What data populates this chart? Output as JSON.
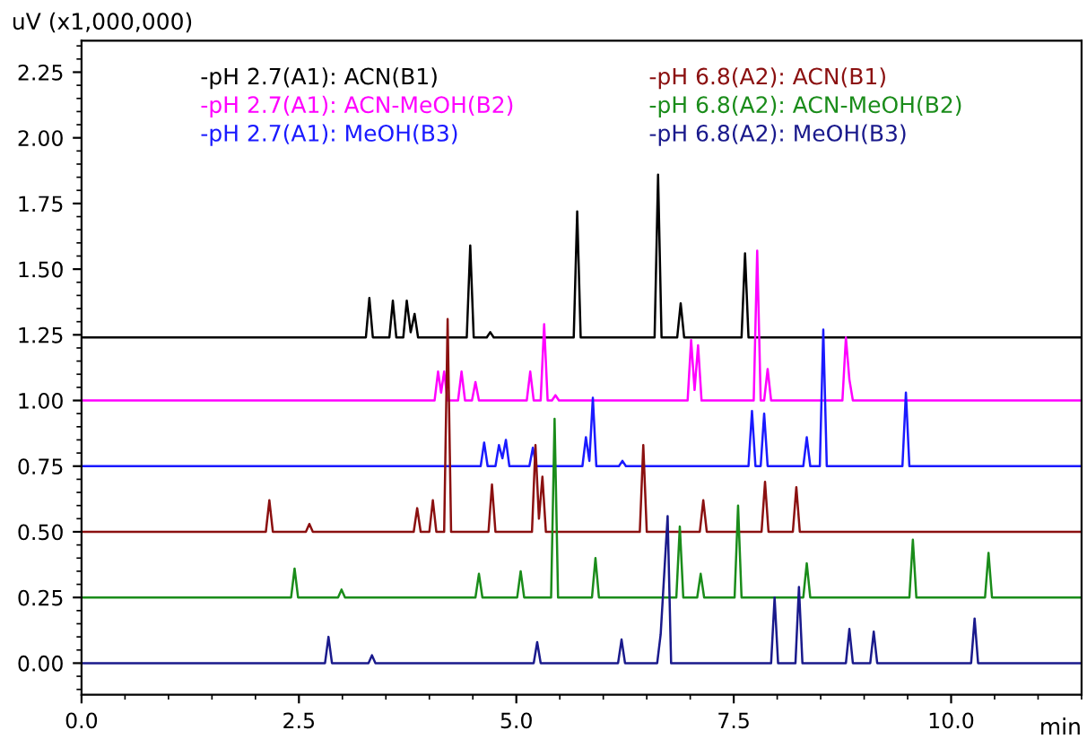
{
  "chart_data": {
    "type": "line",
    "ylabel": "uV (x1,000,000)",
    "xlabel": "min",
    "xlim": [
      0,
      11.5
    ],
    "ylim": [
      -0.12,
      2.37
    ],
    "xticks": [
      {
        "value": 0,
        "label": "0.0"
      },
      2.5,
      {
        "value": 5,
        "label": "5.0"
      },
      7.5,
      {
        "value": 10,
        "label": "10.0"
      }
    ],
    "yticks": [
      {
        "value": 0,
        "label": "0.00"
      },
      0.25,
      {
        "value": 0.5,
        "label": "0.50"
      },
      0.75,
      {
        "value": 1,
        "label": "1.00"
      },
      1.25,
      {
        "value": 1.5,
        "label": "1.50"
      },
      1.75,
      {
        "value": 2,
        "label": "2.00"
      },
      2.25
    ],
    "grid": false,
    "legend": "top",
    "marker": "none",
    "line_style": "solid",
    "series": [
      {
        "name": "-pH 2.7(A1): ACN(B1)",
        "color": "#000000",
        "x": [
          0,
          3.27,
          3.31,
          3.35,
          3.54,
          3.58,
          3.62,
          3.7,
          3.74,
          3.785,
          3.83,
          3.87,
          4.43,
          4.47,
          4.51,
          4.66,
          4.7,
          4.74,
          5.66,
          5.7,
          5.74,
          6.59,
          6.63,
          6.67,
          6.85,
          6.89,
          6.93,
          7.59,
          7.63,
          7.67,
          11.5
        ],
        "values": [
          1.24,
          1.24,
          1.39,
          1.24,
          1.24,
          1.38,
          1.24,
          1.24,
          1.38,
          1.26,
          1.33,
          1.24,
          1.24,
          1.59,
          1.24,
          1.24,
          1.26,
          1.24,
          1.24,
          1.72,
          1.24,
          1.24,
          1.86,
          1.24,
          1.24,
          1.37,
          1.24,
          1.24,
          1.56,
          1.24,
          1.24
        ]
      },
      {
        "name": "-pH 2.7(A1): ACN-MeOH(B2)",
        "color": "#ff00ff",
        "x": [
          0,
          4.06,
          4.1,
          4.135,
          4.17,
          4.21,
          4.33,
          4.37,
          4.41,
          4.49,
          4.53,
          4.57,
          5.12,
          5.16,
          5.2,
          5.28,
          5.32,
          5.36,
          5.41,
          5.45,
          5.49,
          6.97,
          7.01,
          7.05,
          7.09,
          7.13,
          7.73,
          7.77,
          7.81,
          7.85,
          7.89,
          7.93,
          8.75,
          8.79,
          8.83,
          8.87,
          11.5
        ],
        "values": [
          1.0,
          1.0,
          1.11,
          1.03,
          1.11,
          1.0,
          1.0,
          1.11,
          1.0,
          1.0,
          1.07,
          1.0,
          1.0,
          1.11,
          1.0,
          1.0,
          1.29,
          1.0,
          1.0,
          1.02,
          1.0,
          1.0,
          1.23,
          1.04,
          1.21,
          1.0,
          1.0,
          1.57,
          1.0,
          1.0,
          1.12,
          1.0,
          1.0,
          1.24,
          1.08,
          1.0,
          1.0
        ]
      },
      {
        "name": "-pH 2.7(A1): MeOH(B3)",
        "color": "#1a1aff",
        "x": [
          0,
          4.59,
          4.63,
          4.67,
          4.76,
          4.8,
          4.84,
          4.88,
          4.92,
          5.15,
          5.19,
          5.23,
          5.76,
          5.8,
          5.84,
          5.88,
          5.92,
          6.18,
          6.22,
          6.26,
          7.67,
          7.71,
          7.75,
          7.81,
          7.85,
          7.89,
          8.3,
          8.34,
          8.38,
          8.49,
          8.53,
          8.57,
          9.44,
          9.48,
          9.52,
          11.5
        ],
        "values": [
          0.75,
          0.75,
          0.84,
          0.75,
          0.75,
          0.83,
          0.78,
          0.85,
          0.75,
          0.75,
          0.82,
          0.75,
          0.75,
          0.86,
          0.77,
          1.01,
          0.75,
          0.75,
          0.77,
          0.75,
          0.75,
          0.96,
          0.75,
          0.75,
          0.95,
          0.75,
          0.75,
          0.86,
          0.75,
          0.75,
          1.27,
          0.75,
          0.75,
          1.03,
          0.75,
          0.75
        ]
      },
      {
        "name": "-pH 6.8(A2): ACN(B1)",
        "color": "#8b1010",
        "x": [
          0,
          2.12,
          2.16,
          2.2,
          2.58,
          2.62,
          2.66,
          3.82,
          3.86,
          3.9,
          4.0,
          4.04,
          4.08,
          4.17,
          4.21,
          4.25,
          4.68,
          4.72,
          4.76,
          5.18,
          5.22,
          5.26,
          5.3,
          5.34,
          6.42,
          6.46,
          6.5,
          7.11,
          7.15,
          7.19,
          7.82,
          7.86,
          7.9,
          8.18,
          8.22,
          8.26,
          11.5
        ],
        "values": [
          0.5,
          0.5,
          0.62,
          0.5,
          0.5,
          0.53,
          0.5,
          0.5,
          0.59,
          0.5,
          0.5,
          0.62,
          0.5,
          0.5,
          1.31,
          0.5,
          0.5,
          0.68,
          0.5,
          0.5,
          0.83,
          0.55,
          0.71,
          0.5,
          0.5,
          0.83,
          0.5,
          0.5,
          0.62,
          0.5,
          0.5,
          0.69,
          0.5,
          0.5,
          0.67,
          0.5,
          0.5
        ]
      },
      {
        "name": "-pH 6.8(A2): ACN-MeOH(B2)",
        "color": "#1a8c1a",
        "x": [
          0,
          2.41,
          2.45,
          2.49,
          2.95,
          2.99,
          3.03,
          4.53,
          4.57,
          4.61,
          5.01,
          5.05,
          5.09,
          5.4,
          5.44,
          5.48,
          5.87,
          5.91,
          5.95,
          6.84,
          6.88,
          6.92,
          7.08,
          7.12,
          7.16,
          7.51,
          7.55,
          7.59,
          8.3,
          8.34,
          8.38,
          9.52,
          9.56,
          9.6,
          10.39,
          10.43,
          10.47,
          11.5
        ],
        "values": [
          0.25,
          0.25,
          0.36,
          0.25,
          0.25,
          0.28,
          0.25,
          0.25,
          0.34,
          0.25,
          0.25,
          0.35,
          0.25,
          0.25,
          0.93,
          0.25,
          0.25,
          0.4,
          0.25,
          0.25,
          0.52,
          0.25,
          0.25,
          0.34,
          0.25,
          0.25,
          0.6,
          0.25,
          0.25,
          0.38,
          0.25,
          0.25,
          0.47,
          0.25,
          0.25,
          0.42,
          0.25,
          0.25
        ]
      },
      {
        "name": "-pH 6.8(A2): MeOH(B3)",
        "color": "#1a1a8c",
        "x": [
          0,
          2.8,
          2.84,
          2.88,
          3.3,
          3.34,
          3.38,
          5.2,
          5.24,
          5.28,
          6.17,
          6.21,
          6.25,
          6.62,
          6.66,
          6.74,
          6.78,
          7.93,
          7.97,
          8.01,
          8.21,
          8.25,
          8.29,
          8.79,
          8.83,
          8.87,
          9.07,
          9.11,
          9.15,
          10.23,
          10.27,
          10.31,
          11.5
        ],
        "values": [
          0,
          0,
          0.1,
          0,
          0,
          0.03,
          0,
          0,
          0.08,
          0,
          0,
          0.09,
          0,
          0,
          0.11,
          0.56,
          0,
          0,
          0.25,
          0,
          0,
          0.29,
          0,
          0,
          0.13,
          0,
          0,
          0.12,
          0,
          0,
          0.17,
          0,
          0
        ]
      }
    ]
  }
}
